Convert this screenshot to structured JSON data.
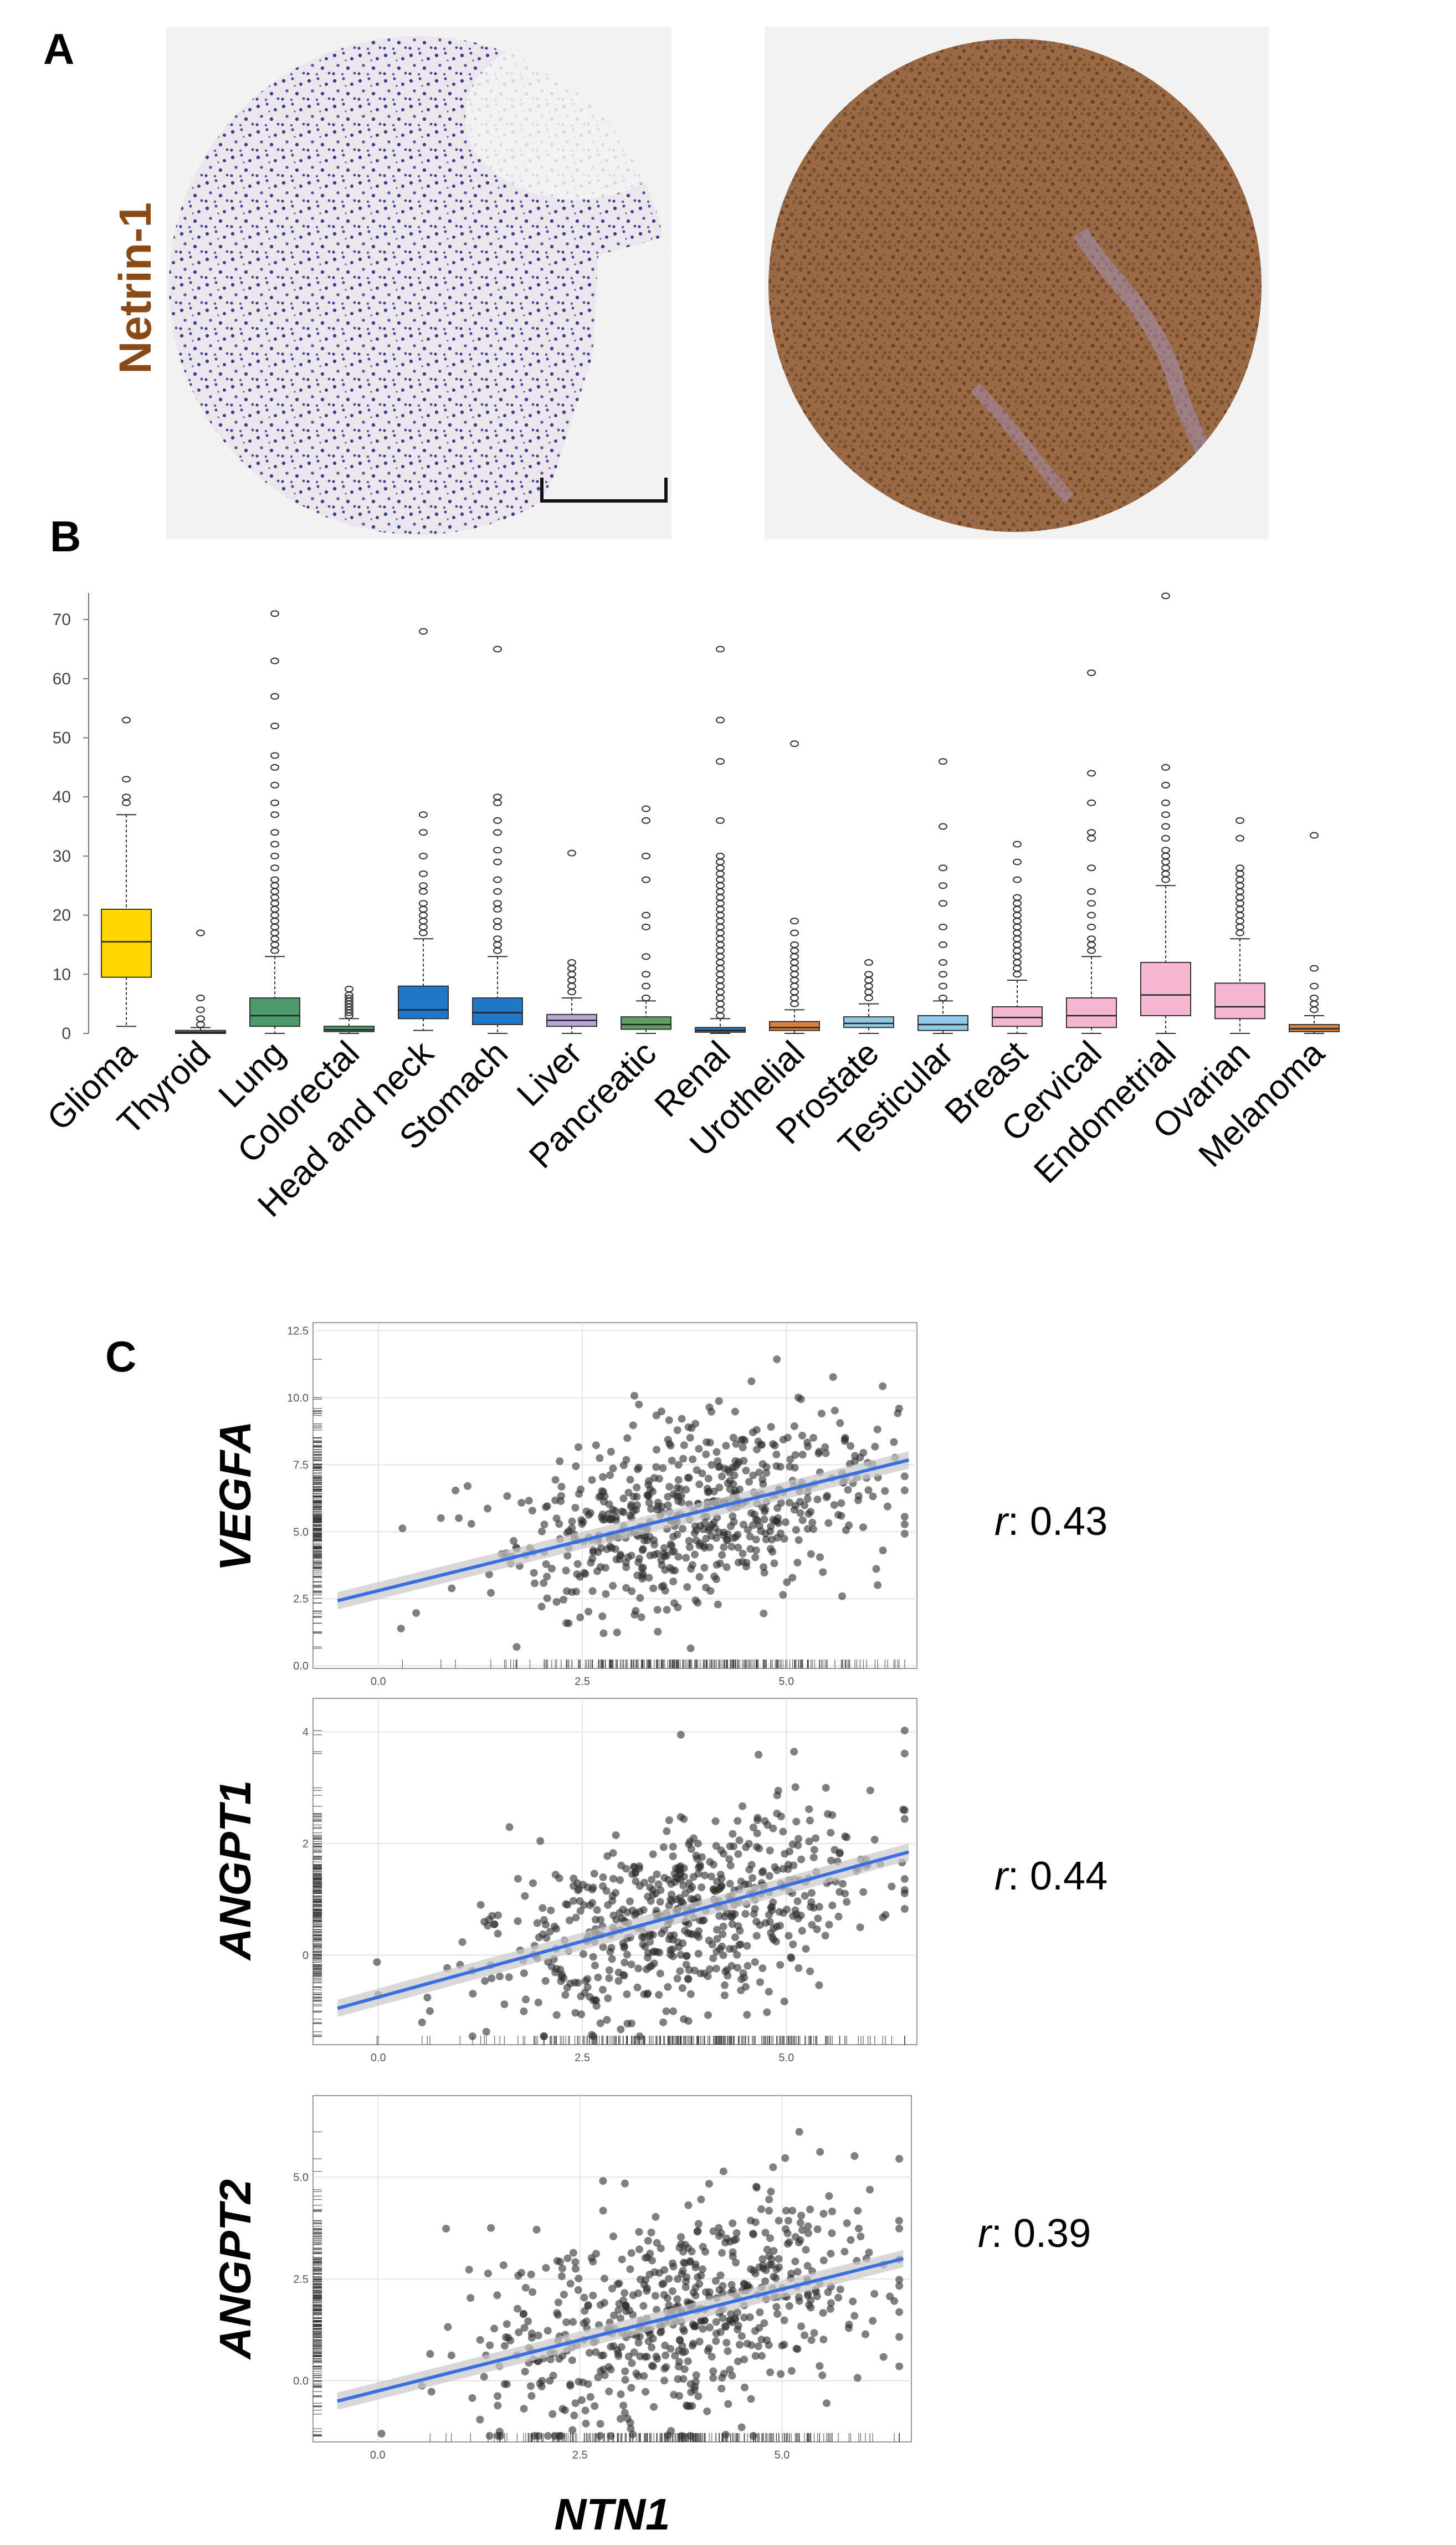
{
  "panels": {
    "a": "A",
    "b": "B",
    "c": "C"
  },
  "panel_a": {
    "protein_label": "Netrin-1"
  },
  "colors": {
    "glioma": "#ffd700",
    "lung": "#4c9a6a",
    "head_stomach": "#1f78c8",
    "liver": "#b7a8d8",
    "pancreatic": "#5f9e66",
    "urothelial": "#d9823b",
    "prostate_testicular": "#8fcbe8",
    "pink": "#f5b8d0",
    "regression": "#3a6fe0",
    "band": "#c8c8c8"
  },
  "chart_data": [
    {
      "type": "box",
      "panel": "B",
      "ylim": [
        0,
        75
      ],
      "yticks": [
        0,
        10,
        20,
        30,
        40,
        50,
        60,
        70
      ],
      "categories": [
        "Glioma",
        "Thyroid",
        "Lung",
        "Colorectal",
        "Head and neck",
        "Stomach",
        "Liver",
        "Pancreatic",
        "Renal",
        "Urothelial",
        "Prostate",
        "Testicular",
        "Breast",
        "Cervical",
        "Endometrial",
        "Ovarian",
        "Melanoma"
      ],
      "boxes": [
        {
          "min": 1.2,
          "q1": 9.5,
          "median": 15.5,
          "q3": 21,
          "max": 37,
          "color": "#ffd700",
          "outliers": [
            39,
            40,
            43,
            53
          ]
        },
        {
          "min": 0,
          "q1": 0,
          "median": 0.2,
          "q3": 0.5,
          "max": 1,
          "color": "#4c9a6a",
          "outliers": [
            1.5,
            2.5,
            4,
            6,
            17
          ]
        },
        {
          "min": 0,
          "q1": 1.2,
          "median": 3,
          "q3": 6,
          "max": 13,
          "color": "#4c9a6a",
          "outliers": [
            14,
            15,
            16,
            17,
            18,
            19,
            20,
            21,
            22,
            23,
            24,
            25,
            26,
            28,
            30,
            32,
            34,
            37,
            39,
            42,
            45,
            47,
            52,
            57,
            63,
            71
          ]
        },
        {
          "min": 0,
          "q1": 0.3,
          "median": 0.6,
          "q3": 1.2,
          "max": 2.5,
          "color": "#4c9a6a",
          "outliers": [
            3,
            3.5,
            4,
            4.5,
            5,
            5.5,
            6,
            6.5,
            7.5
          ]
        },
        {
          "min": 0.5,
          "q1": 2.5,
          "median": 4,
          "q3": 8,
          "max": 16,
          "color": "#1f78c8",
          "outliers": [
            17,
            18,
            19,
            20,
            21,
            22,
            24,
            25,
            27,
            30,
            34,
            37,
            68
          ]
        },
        {
          "min": 0,
          "q1": 1.5,
          "median": 3.5,
          "q3": 6,
          "max": 13,
          "color": "#1f78c8",
          "outliers": [
            14,
            15,
            16,
            18,
            19,
            21,
            22,
            24,
            26,
            29,
            31,
            34,
            36,
            39,
            40,
            65
          ]
        },
        {
          "min": 0,
          "q1": 1.2,
          "median": 2.2,
          "q3": 3.2,
          "max": 6,
          "color": "#b7a8d8",
          "outliers": [
            7,
            8,
            9,
            10,
            11,
            12,
            30.5
          ]
        },
        {
          "min": 0,
          "q1": 0.7,
          "median": 1.5,
          "q3": 2.8,
          "max": 5.5,
          "color": "#5f9e66",
          "outliers": [
            6,
            8,
            10,
            13,
            18,
            20,
            26,
            30,
            36,
            38
          ]
        },
        {
          "min": 0,
          "q1": 0.2,
          "median": 0.5,
          "q3": 1,
          "max": 2.5,
          "color": "#1f78c8",
          "outliers": [
            3,
            4,
            5,
            6,
            7,
            8,
            9,
            10,
            11,
            12,
            13,
            14,
            15,
            16,
            17,
            18,
            19,
            20,
            21,
            22,
            23,
            24,
            25,
            26,
            27,
            28,
            29,
            30,
            36,
            46,
            53,
            65
          ]
        },
        {
          "min": 0,
          "q1": 0.5,
          "median": 1,
          "q3": 2,
          "max": 4,
          "color": "#d9823b",
          "outliers": [
            5,
            6,
            7,
            8,
            9,
            10,
            11,
            12,
            13,
            14,
            15,
            17,
            19,
            49
          ]
        },
        {
          "min": 0,
          "q1": 1,
          "median": 1.7,
          "q3": 2.8,
          "max": 5,
          "color": "#8fcbe8",
          "outliers": [
            6,
            7,
            8,
            9,
            10,
            12
          ]
        },
        {
          "min": 0,
          "q1": 0.5,
          "median": 1.5,
          "q3": 3,
          "max": 5.5,
          "color": "#8fcbe8",
          "outliers": [
            6,
            8,
            10,
            12,
            15,
            18,
            22,
            25,
            28,
            35,
            46
          ]
        },
        {
          "min": 0,
          "q1": 1.2,
          "median": 2.7,
          "q3": 4.5,
          "max": 9,
          "color": "#f5b8d0",
          "outliers": [
            10,
            11,
            12,
            13,
            14,
            15,
            16,
            17,
            18,
            19,
            20,
            21,
            22,
            23,
            26,
            29,
            32
          ]
        },
        {
          "min": 0,
          "q1": 1,
          "median": 3,
          "q3": 6,
          "max": 13,
          "color": "#f5b8d0",
          "outliers": [
            14,
            15,
            16,
            18,
            20,
            22,
            24,
            28,
            33,
            34,
            39,
            44,
            61
          ]
        },
        {
          "min": 0,
          "q1": 3,
          "median": 6.5,
          "q3": 12,
          "max": 25,
          "color": "#f5b8d0",
          "outliers": [
            26,
            27,
            28,
            29,
            30,
            31,
            33,
            35,
            37,
            39,
            42,
            45,
            74
          ]
        },
        {
          "min": 0,
          "q1": 2.5,
          "median": 4.5,
          "q3": 8.5,
          "max": 16,
          "color": "#f5b8d0",
          "outliers": [
            17,
            18,
            19,
            20,
            21,
            22,
            23,
            24,
            25,
            26,
            27,
            28,
            33,
            36
          ]
        },
        {
          "min": 0,
          "q1": 0.3,
          "median": 0.8,
          "q3": 1.5,
          "max": 3,
          "color": "#d9823b",
          "outliers": [
            4,
            5,
            6,
            8,
            11,
            33.5
          ]
        }
      ]
    },
    {
      "type": "scatter",
      "panel": "C",
      "ylabel": "VEGFA",
      "r_prefix": "r",
      "r_value": ": 0.43",
      "xlim": [
        -0.8,
        6.6
      ],
      "ylim": [
        -0.1,
        12.8
      ],
      "xticks": [
        0.0,
        2.5,
        5.0
      ],
      "xtick_labels": [
        "0.0",
        "2.5",
        "5.0"
      ],
      "yticks": [
        0.0,
        2.5,
        5.0,
        7.5,
        10.0,
        12.5
      ],
      "ytick_labels": [
        "0.0",
        "2.5",
        "5.0",
        "7.5",
        "10.0",
        "12.5"
      ],
      "fit": {
        "intercept": 2.8,
        "slope": 0.75
      },
      "cloud": {
        "n": 620,
        "x_center": 3.8,
        "x_sd": 1.2,
        "noise_sd": 1.8
      }
    },
    {
      "type": "scatter",
      "panel": "C",
      "ylabel": "ANGPT1",
      "r_prefix": "r",
      "r_value": ": 0.44",
      "xlim": [
        -0.8,
        6.6
      ],
      "ylim": [
        -1.6,
        4.6
      ],
      "xticks": [
        0.0,
        2.5,
        5.0
      ],
      "xtick_labels": [
        "0.0",
        "2.5",
        "5.0"
      ],
      "yticks": [
        0,
        2,
        4
      ],
      "ytick_labels": [
        "0",
        "2",
        "4"
      ],
      "fit": {
        "intercept": -0.75,
        "slope": 0.4
      },
      "cloud": {
        "n": 620,
        "x_center": 3.7,
        "x_sd": 1.25,
        "noise_sd": 0.85
      }
    },
    {
      "type": "scatter",
      "panel": "C",
      "ylabel": "ANGPT2",
      "xlabel": "NTN1",
      "r_prefix": "r",
      "r_value": ": 0.39",
      "xlim": [
        -0.8,
        6.6
      ],
      "ylim": [
        -1.5,
        7.0
      ],
      "xticks": [
        0.0,
        2.5,
        5.0
      ],
      "xtick_labels": [
        "0.0",
        "2.5",
        "5.0"
      ],
      "yticks": [
        0.0,
        2.5,
        5.0
      ],
      "ytick_labels": [
        "0.0",
        "2.5",
        "5.0"
      ],
      "fit": {
        "intercept": -0.25,
        "slope": 0.5
      },
      "cloud": {
        "n": 620,
        "x_center": 3.7,
        "x_sd": 1.25,
        "noise_sd": 1.3
      }
    }
  ]
}
